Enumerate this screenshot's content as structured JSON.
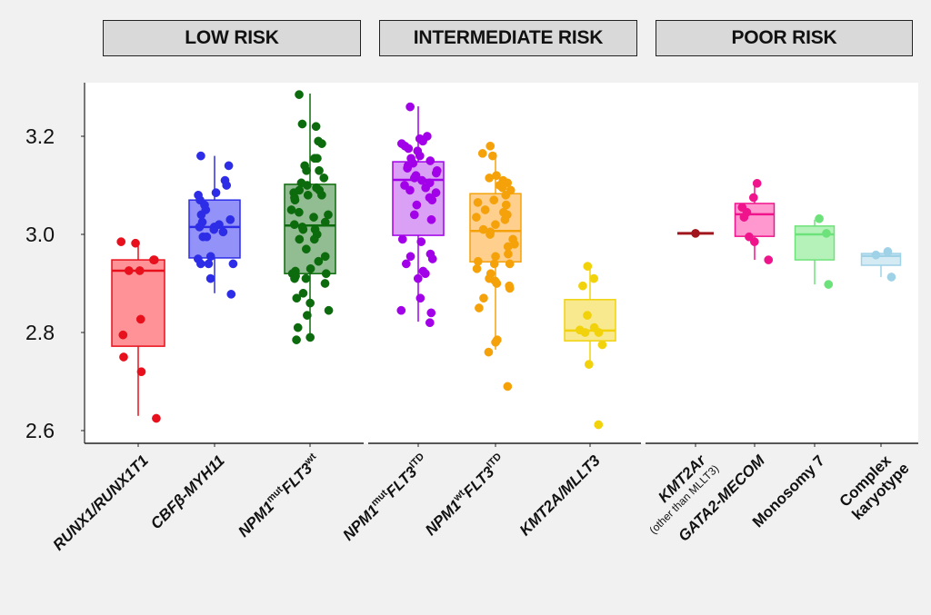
{
  "headers": [
    {
      "label": "LOW RISK",
      "groups": [
        0,
        1,
        2
      ]
    },
    {
      "label": "INTERMEDIATE RISK",
      "groups": [
        3,
        4,
        5
      ]
    },
    {
      "label": "POOR RISK",
      "groups": [
        6,
        7,
        8,
        9
      ]
    }
  ],
  "chart_data": {
    "type": "box",
    "title": "",
    "xlabel": "",
    "ylabel": "",
    "ylim": [
      2.58,
      3.31
    ],
    "yticks": [
      2.6,
      2.8,
      3.0,
      3.2
    ],
    "ytick_labels": [
      "2.6",
      "2.8",
      "3.0",
      "3.2"
    ],
    "grid": false,
    "legend": "none",
    "panels": [
      "LOW RISK",
      "INTERMEDIATE RISK",
      "POOR RISK"
    ],
    "categories": [
      {
        "label": "RUNX1/RUNX1T1",
        "parts": [
          {
            "t": "RUNX1/RUNX1T1"
          }
        ],
        "italic": true
      },
      {
        "label": "CBFβ-MYH11",
        "parts": [
          {
            "t": "CBFβ-MYH11"
          }
        ],
        "italic": true
      },
      {
        "label": "NPM1mut FLT3wt",
        "parts": [
          {
            "t": "NPM1"
          },
          {
            "t": "mut",
            "sup": true
          },
          {
            "t": "FLT3"
          },
          {
            "t": "wt",
            "sup": true
          }
        ],
        "italic": true
      },
      {
        "label": "NPM1mut FLT3ITD",
        "parts": [
          {
            "t": "NPM1"
          },
          {
            "t": "mut",
            "sup": true
          },
          {
            "t": "FLT3"
          },
          {
            "t": "ITD",
            "sup": true
          }
        ],
        "italic": true
      },
      {
        "label": "NPM1wt FLT3ITD",
        "parts": [
          {
            "t": "NPM1"
          },
          {
            "t": "wt",
            "sup": true
          },
          {
            "t": "FLT3"
          },
          {
            "t": "ITD",
            "sup": true
          }
        ],
        "italic": true
      },
      {
        "label": "KMT2A/MLLT3",
        "parts": [
          {
            "t": "KMT2A/MLLT3"
          }
        ],
        "italic": true
      },
      {
        "label": "KMT2Ar (other than MLLT3)",
        "parts": [
          {
            "t": "KMT2Ar"
          }
        ],
        "sub": "(other than MLLT3)",
        "italic": true
      },
      {
        "label": "GATA2-MECOM",
        "parts": [
          {
            "t": "GATA2-MECOM"
          }
        ],
        "italic": true
      },
      {
        "label": "Monosomy 7",
        "parts": [
          {
            "t": "Monosomy 7"
          }
        ],
        "italic": false
      },
      {
        "label": "Complex karyotype",
        "parts": [
          {
            "t": "Complex"
          }
        ],
        "line2": "karyotype",
        "italic": false
      }
    ],
    "series": [
      {
        "name": "RUNX1/RUNX1T1",
        "color": "#e8101c",
        "fill": "#ff7f84",
        "whisker_low": 2.63,
        "q1": 2.772,
        "median": 2.926,
        "q3": 2.948,
        "whisker_high": 2.976,
        "points": [
          2.985,
          2.982,
          2.948,
          2.948,
          2.926,
          2.926,
          2.827,
          2.795,
          2.75,
          2.72,
          2.625
        ]
      },
      {
        "name": "CBFβ-MYH11",
        "color": "#2d2de8",
        "fill": "#7f7ff7",
        "whisker_low": 2.88,
        "q1": 2.952,
        "median": 3.015,
        "q3": 3.07,
        "whisker_high": 3.16,
        "points": [
          3.16,
          3.14,
          3.11,
          3.1,
          3.085,
          3.08,
          3.07,
          3.06,
          3.05,
          3.04,
          3.03,
          3.025,
          3.02,
          3.015,
          3.015,
          3.01,
          3.005,
          2.995,
          2.995,
          2.955,
          2.95,
          2.94,
          2.94,
          2.94,
          2.91,
          2.878
        ]
      },
      {
        "name": "NPM1mut FLT3wt",
        "color": "#0c6b0c",
        "fill": "#7fb07f",
        "whisker_low": 2.787,
        "q1": 2.92,
        "median": 3.018,
        "q3": 3.102,
        "whisker_high": 3.287,
        "points": [
          3.285,
          3.225,
          3.22,
          3.19,
          3.185,
          3.155,
          3.155,
          3.14,
          3.13,
          3.13,
          3.115,
          3.105,
          3.1,
          3.095,
          3.09,
          3.09,
          3.085,
          3.08,
          3.08,
          3.075,
          3.07,
          3.05,
          3.045,
          3.04,
          3.035,
          3.025,
          3.02,
          3.015,
          3.01,
          3.01,
          3.0,
          2.99,
          2.99,
          2.97,
          2.955,
          2.945,
          2.93,
          2.925,
          2.92,
          2.92,
          2.915,
          2.91,
          2.91,
          2.9,
          2.88,
          2.87,
          2.86,
          2.845,
          2.835,
          2.81,
          2.79,
          2.785
        ]
      },
      {
        "name": "NPM1mut FLT3ITD",
        "color": "#a100e8",
        "fill": "#d48ff5",
        "whisker_low": 2.822,
        "q1": 2.998,
        "median": 3.111,
        "q3": 3.148,
        "whisker_high": 3.261,
        "points": [
          3.26,
          3.2,
          3.195,
          3.19,
          3.185,
          3.18,
          3.175,
          3.17,
          3.16,
          3.155,
          3.15,
          3.145,
          3.14,
          3.135,
          3.13,
          3.125,
          3.12,
          3.115,
          3.11,
          3.105,
          3.1,
          3.095,
          3.09,
          3.085,
          3.075,
          3.07,
          3.06,
          3.04,
          3.03,
          2.99,
          2.985,
          2.96,
          2.955,
          2.95,
          2.94,
          2.925,
          2.92,
          2.91,
          2.87,
          2.845,
          2.84,
          2.82
        ]
      },
      {
        "name": "NPM1wt FLT3ITD",
        "color": "#f5a20a",
        "fill": "#ffc77a",
        "whisker_low": 2.765,
        "q1": 2.944,
        "median": 3.007,
        "q3": 3.083,
        "whisker_high": 3.167,
        "points": [
          3.18,
          3.165,
          3.16,
          3.12,
          3.115,
          3.11,
          3.105,
          3.1,
          3.095,
          3.09,
          3.08,
          3.07,
          3.065,
          3.06,
          3.05,
          3.045,
          3.04,
          3.035,
          3.03,
          3.02,
          3.01,
          3.005,
          3.0,
          2.99,
          2.98,
          2.975,
          2.96,
          2.955,
          2.945,
          2.94,
          2.94,
          2.93,
          2.92,
          2.91,
          2.905,
          2.9,
          2.895,
          2.89,
          2.87,
          2.85,
          2.785,
          2.78,
          2.76,
          2.69
        ]
      },
      {
        "name": "KMT2A/MLLT3",
        "color": "#f2d20a",
        "fill": "#f7e57a",
        "whisker_low": 2.73,
        "q1": 2.783,
        "median": 2.804,
        "q3": 2.867,
        "whisker_high": 2.93,
        "points": [
          2.935,
          2.91,
          2.895,
          2.835,
          2.81,
          2.805,
          2.8,
          2.8,
          2.775,
          2.735,
          2.612
        ]
      },
      {
        "name": "KMT2Ar (other than MLLT3)",
        "color": "#a0161c",
        "fill": "#a0161c",
        "whisker_low": 3.002,
        "q1": 3.002,
        "median": 3.002,
        "q3": 3.002,
        "whisker_high": 3.002,
        "points": [
          3.002
        ]
      },
      {
        "name": "GATA2-MECOM",
        "color": "#f0148c",
        "fill": "#ff86c5",
        "whisker_low": 2.948,
        "q1": 2.996,
        "median": 3.041,
        "q3": 3.063,
        "whisker_high": 3.104,
        "points": [
          3.104,
          3.075,
          3.055,
          3.045,
          3.035,
          2.995,
          2.985,
          2.948
        ]
      },
      {
        "name": "Monosomy 7",
        "color": "#6ee27a",
        "fill": "#a8f0ae",
        "whisker_low": 2.898,
        "q1": 2.948,
        "median": 3.0,
        "q3": 3.017,
        "whisker_high": 3.03,
        "points": [
          3.032,
          3.002,
          2.898
        ]
      },
      {
        "name": "Complex karyotype",
        "color": "#9fd2e6",
        "fill": "#cde8f2",
        "whisker_low": 2.913,
        "q1": 2.937,
        "median": 2.956,
        "q3": 2.961,
        "whisker_high": 2.961,
        "points": [
          2.965,
          2.958,
          2.913
        ]
      }
    ]
  }
}
